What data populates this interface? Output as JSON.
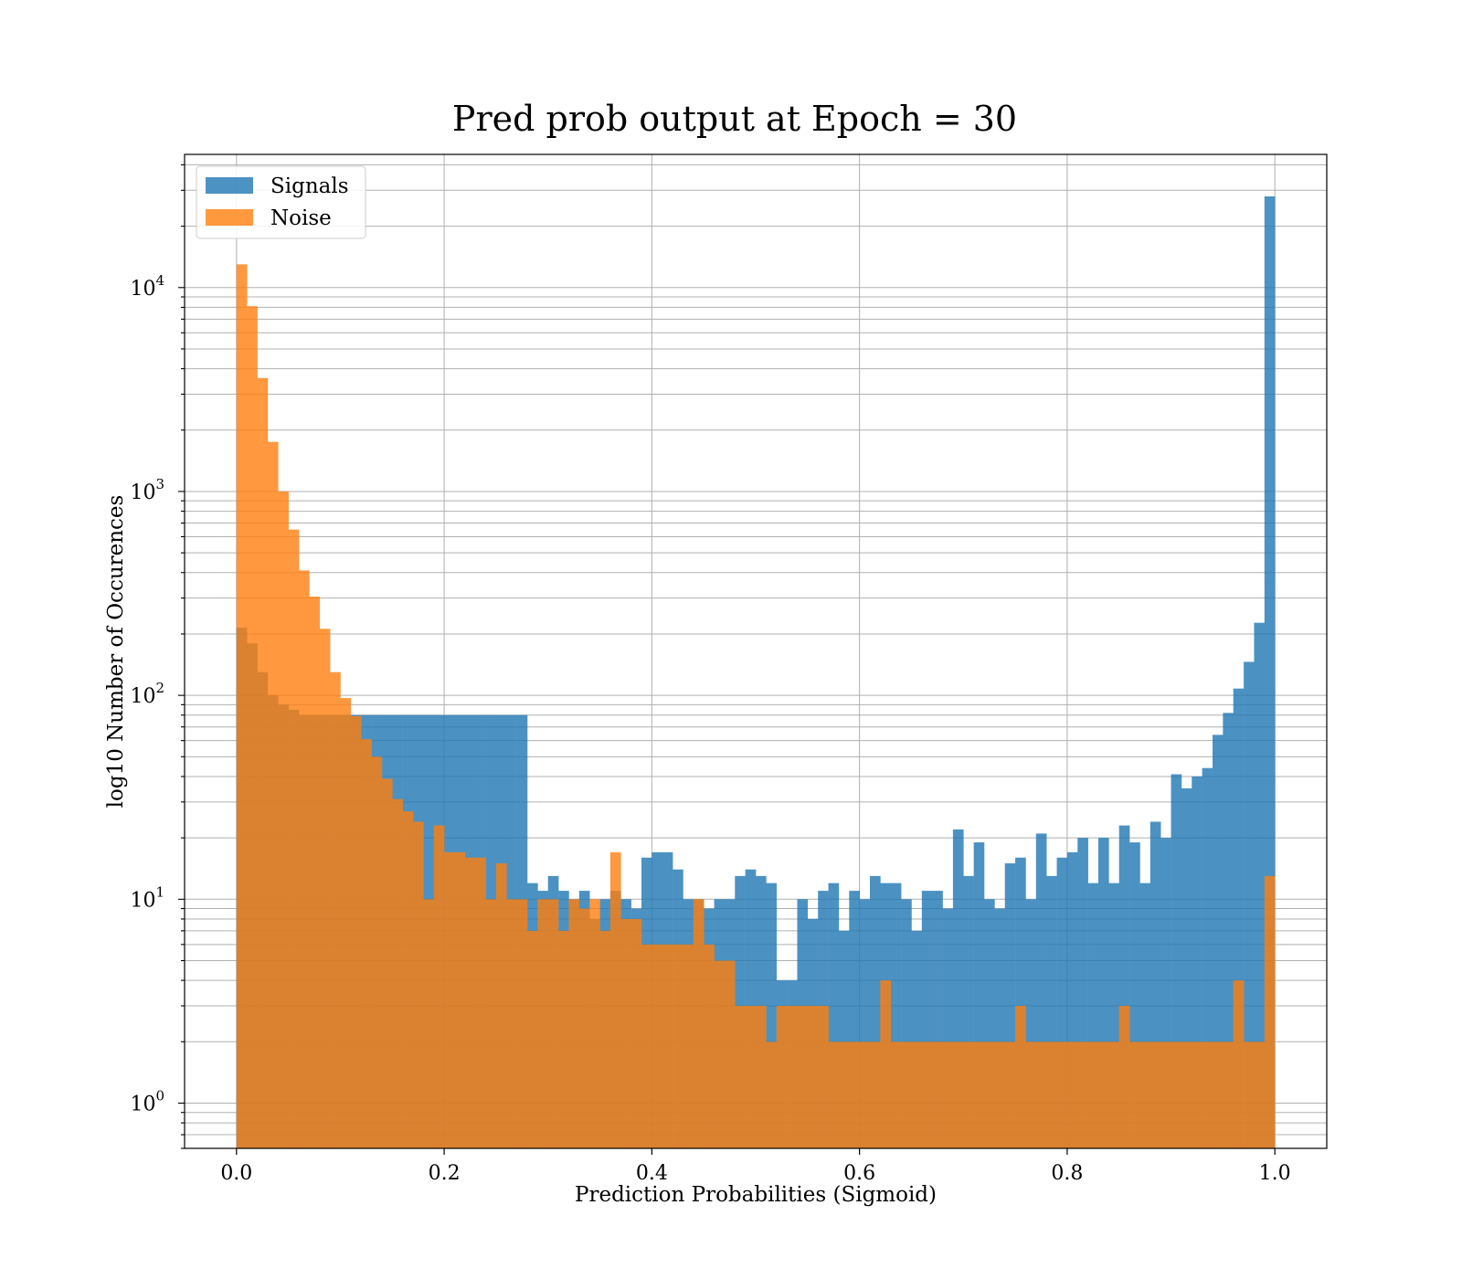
{
  "chart_data": {
    "type": "bar",
    "title": "Pred prob output at Epoch = 30",
    "xlabel": "Prediction Probabilities (Sigmoid)",
    "ylabel": "log10 Number of Occurences",
    "xlim": [
      -0.05,
      1.05
    ],
    "ylim": [
      0.6,
      45000
    ],
    "yscale": "log",
    "grid": true,
    "legend_position": "top-left",
    "x_ticks": [
      "0.0",
      "0.2",
      "0.4",
      "0.6",
      "0.8",
      "1.0"
    ],
    "y_ticks": [
      {
        "base": "10",
        "exp": "0"
      },
      {
        "base": "10",
        "exp": "1"
      },
      {
        "base": "10",
        "exp": "2"
      },
      {
        "base": "10",
        "exp": "3"
      },
      {
        "base": "10",
        "exp": "4"
      }
    ],
    "bins": {
      "start": 0.0,
      "end": 1.0,
      "count": 100
    },
    "series": [
      {
        "name": "Signals",
        "color": "#1f77b4",
        "values": [
          215,
          180,
          130,
          100,
          90,
          85,
          80,
          80,
          80,
          80,
          80,
          80,
          80,
          80,
          80,
          80,
          80,
          80,
          80,
          80,
          80,
          80,
          80,
          80,
          80,
          80,
          80,
          80,
          12,
          11,
          13,
          11,
          10,
          11,
          8,
          10,
          11,
          10,
          9,
          16,
          17,
          17,
          14,
          10,
          10,
          9,
          10,
          10,
          13,
          14,
          13,
          12,
          4,
          4,
          10,
          8,
          11,
          12,
          7,
          11,
          10,
          13,
          12,
          12,
          10,
          7,
          11,
          11,
          9,
          22,
          13,
          19,
          10,
          9,
          15,
          16,
          10,
          21,
          13,
          16,
          17,
          20,
          12,
          20,
          12,
          23,
          19,
          12,
          24,
          20,
          41,
          35,
          40,
          44,
          64,
          82,
          108,
          146,
          227,
          28000
        ]
      },
      {
        "name": "Noise",
        "color": "#ff7f0e",
        "values": [
          13000,
          8100,
          3600,
          1750,
          1000,
          650,
          410,
          305,
          212,
          130,
          97,
          79,
          61,
          50,
          39,
          31,
          27,
          24,
          10,
          23,
          17,
          17,
          16,
          16,
          10,
          15,
          10,
          10,
          7,
          10,
          10,
          7,
          10,
          9,
          10,
          7,
          17,
          8,
          8,
          6,
          6,
          6,
          6,
          6,
          10,
          6,
          5,
          5,
          3,
          3,
          3,
          2,
          3,
          3,
          3,
          3,
          3,
          2,
          2,
          2,
          2,
          2,
          4,
          2,
          2,
          2,
          2,
          2,
          2,
          2,
          2,
          2,
          2,
          2,
          2,
          3,
          2,
          2,
          2,
          2,
          2,
          2,
          2,
          2,
          2,
          3,
          2,
          2,
          2,
          2,
          2,
          2,
          2,
          2,
          2,
          2,
          4,
          2,
          2,
          13
        ]
      }
    ]
  }
}
